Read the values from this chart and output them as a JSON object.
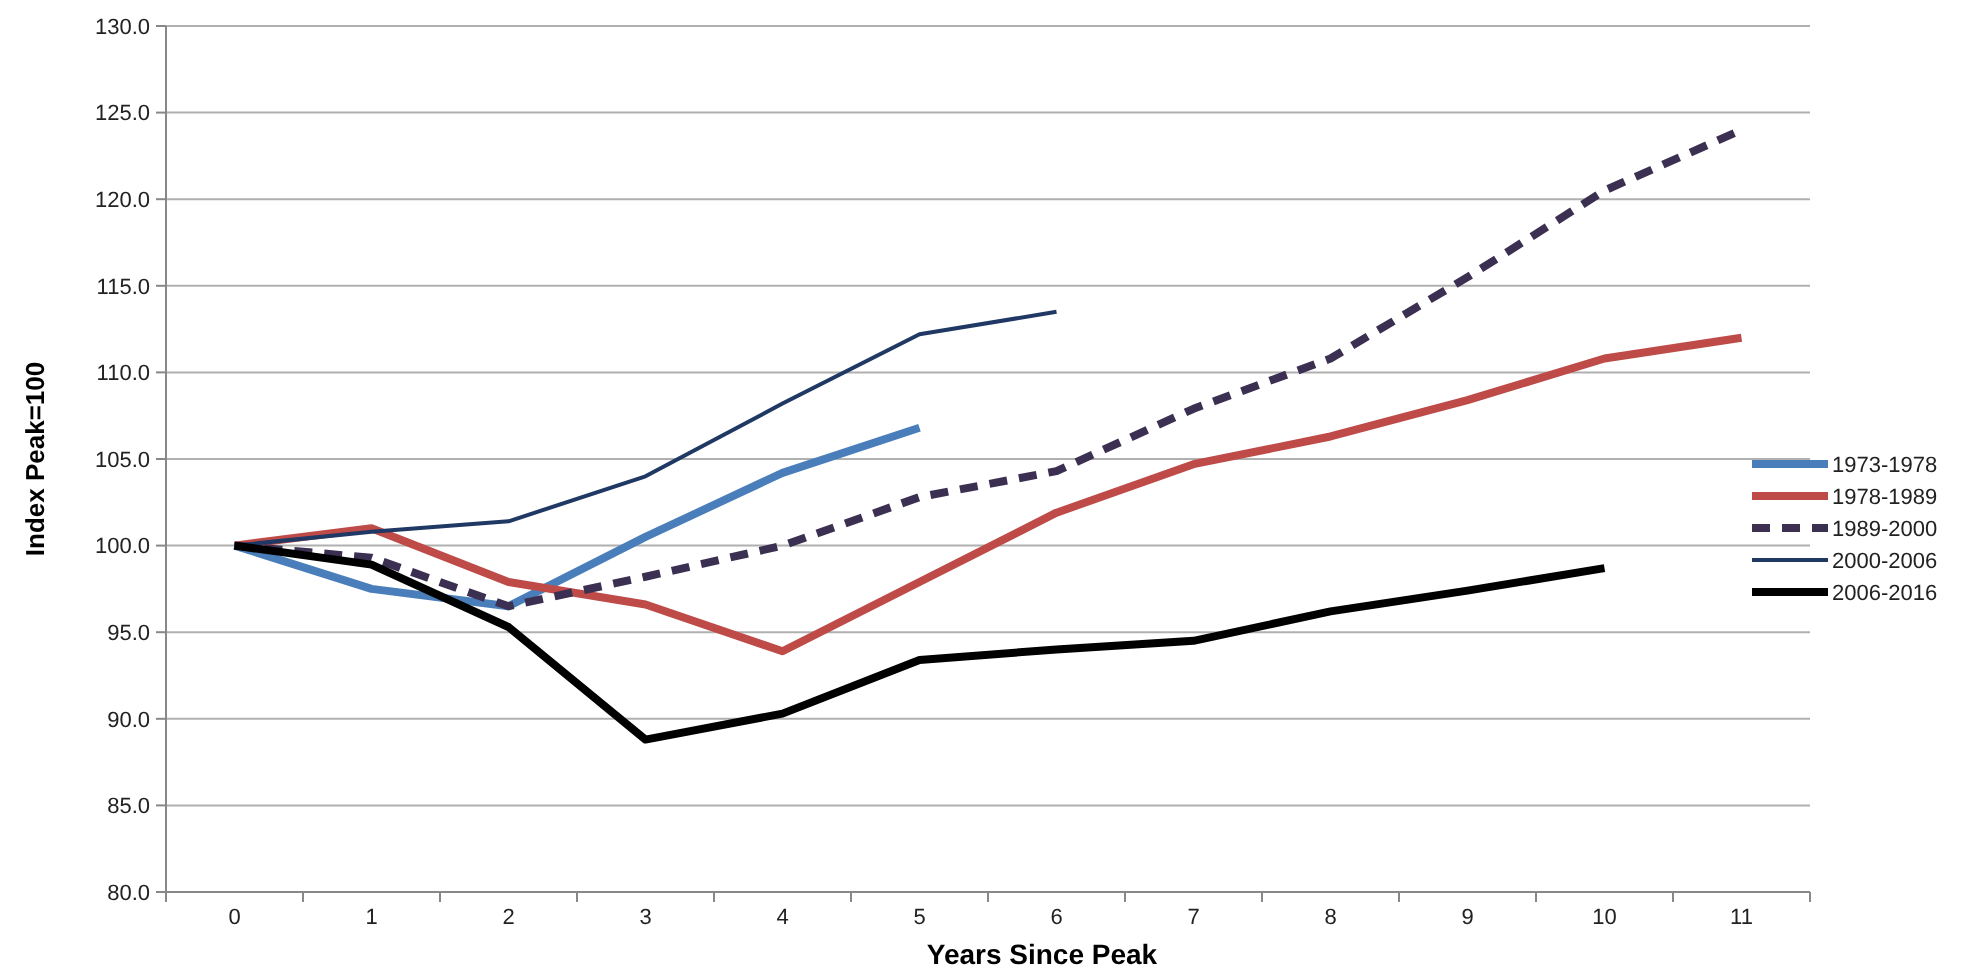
{
  "chart_data": {
    "type": "line",
    "xlabel": "Years Since Peak",
    "ylabel": "Index Peak=100",
    "categories": [
      "0",
      "1",
      "2",
      "3",
      "4",
      "5",
      "6",
      "7",
      "8",
      "9",
      "10",
      "11"
    ],
    "ylim": [
      80,
      130
    ],
    "yticks": [
      {
        "value": 80,
        "label": "80.0"
      },
      {
        "value": 85,
        "label": "85.0"
      },
      {
        "value": 90,
        "label": "90.0"
      },
      {
        "value": 95,
        "label": "95.0"
      },
      {
        "value": 100,
        "label": "100.0"
      },
      {
        "value": 105,
        "label": "105.0"
      },
      {
        "value": 110,
        "label": "110.0"
      },
      {
        "value": 115,
        "label": "115.0"
      },
      {
        "value": 120,
        "label": "120.0"
      },
      {
        "value": 125,
        "label": "125.0"
      },
      {
        "value": 130,
        "label": "130.0"
      }
    ],
    "grid": "y",
    "legend": "right",
    "series": [
      {
        "name": "1973-1978",
        "color": "#4a7ebb",
        "values": [
          100,
          97.5,
          96.5,
          100.5,
          104.2,
          106.8,
          null,
          null,
          null,
          null,
          null,
          null
        ]
      },
      {
        "name": "1978-1989",
        "color": "#be4b48",
        "values": [
          100,
          101,
          97.9,
          96.6,
          93.9,
          97.9,
          101.9,
          104.7,
          106.3,
          108.4,
          110.8,
          112
        ]
      },
      {
        "name": "1989-2000",
        "color": "#3b2f52",
        "line_style": "dashed",
        "values": [
          100,
          99.3,
          96.5,
          98.2,
          100,
          102.8,
          104.3,
          107.9,
          110.8,
          115.5,
          120.5,
          124
        ]
      },
      {
        "name": "2000-2006",
        "color": "#1f3864",
        "values": [
          100,
          100.8,
          101.4,
          104,
          108.2,
          112.2,
          113.5,
          null,
          null,
          null,
          null,
          null
        ]
      },
      {
        "name": "2006-2016",
        "color": "#000000",
        "values": [
          100,
          98.9,
          95.3,
          88.8,
          90.3,
          93.4,
          94,
          94.5,
          96.2,
          97.4,
          98.7,
          null
        ]
      }
    ]
  }
}
